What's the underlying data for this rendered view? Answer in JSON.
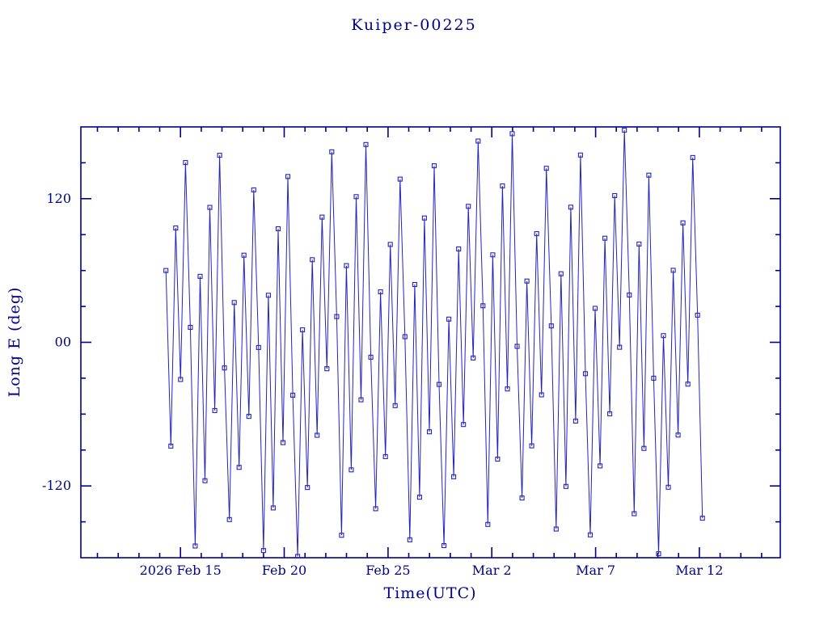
{
  "chart_data": {
    "type": "line",
    "title": "Kuiper-00225",
    "xlabel": "Time(UTC)",
    "ylabel": "Long E (deg)",
    "x_unit": "days since 2026 Feb 10 00:00 UTC",
    "xlim": [
      0.2,
      33.9
    ],
    "ylim": [
      -180,
      180
    ],
    "grid": false,
    "legend": "none",
    "marker": "open-square",
    "axis_color": "#00008b",
    "line_color": "#2323c0",
    "background_color": "#ffffff",
    "x_major_ticks": [
      {
        "value": 5,
        "label": "2026 Feb 15"
      },
      {
        "value": 10,
        "label": "Feb 20"
      },
      {
        "value": 15,
        "label": "Feb 25"
      },
      {
        "value": 20,
        "label": "Mar 2"
      },
      {
        "value": 25,
        "label": "Mar 7"
      },
      {
        "value": 30,
        "label": "Mar 12"
      }
    ],
    "x_minor_step": 1,
    "y_major_ticks": [
      {
        "value": 120,
        "label": "120"
      },
      {
        "value": 0,
        "label": "00"
      },
      {
        "value": -120,
        "label": "-120"
      }
    ],
    "y_minor_step": 30,
    "series": [
      {
        "name": "Long E",
        "x_start": 4.3,
        "x_step": 0.235,
        "y": [
          60,
          -86.7,
          95.6,
          -31.1,
          150.2,
          12.5,
          -170.2,
          55.1,
          -115.6,
          112.7,
          -57,
          156.3,
          -21.4,
          -148.1,
          33.2,
          -104.5,
          72.8,
          -61.9,
          127.4,
          -4.3,
          -174,
          39.3,
          -138.4,
          94.9,
          -83.8,
          138.5,
          -44.2,
          -178.9,
          10.4,
          -121.3,
          69,
          -77.7,
          104.6,
          -22.1,
          159.2,
          21.5,
          -161.2,
          64.1,
          -106.6,
          121.7,
          -48,
          165.3,
          -12.4,
          -139.1,
          42.2,
          -95.5,
          81.8,
          -52.9,
          136.4,
          4.7,
          -165,
          48.3,
          -129.4,
          103.9,
          -74.8,
          147.5,
          -35.2,
          -169.9,
          19.4,
          -112.3,
          78,
          -68.7,
          113.6,
          -13.1,
          168.2,
          30.5,
          -152.2,
          73.1,
          -97.6,
          130.7,
          -39,
          174.3,
          -3.4,
          -130.1,
          51.2,
          -86.5,
          90.8,
          -43.9,
          145.4,
          13.7,
          -156,
          57.3,
          -120.4,
          112.9,
          -65.8,
          156.5,
          -26.2,
          -160.9,
          28.4,
          -103.3,
          87,
          -59.7,
          122.6,
          -4.1,
          177.2,
          39.5,
          -143.2,
          82.1,
          -88.6,
          139.7,
          -30,
          -176.7,
          5.6,
          -121.1,
          60.2,
          -77.5,
          99.8,
          -34.9,
          154.4,
          22.7,
          -147
        ]
      }
    ]
  }
}
